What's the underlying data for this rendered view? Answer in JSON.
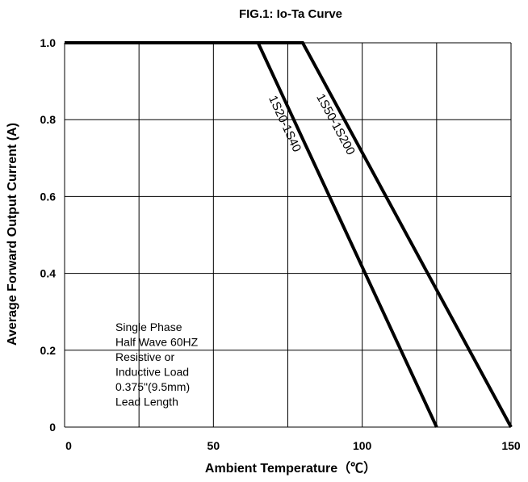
{
  "chart_data": {
    "type": "line",
    "title": "FIG.1: Io-Ta Curve",
    "xlabel": "Ambient Temperature（℃）",
    "ylabel": "Average Forward Output Current (A)",
    "xlim": [
      0,
      150
    ],
    "ylim": [
      0,
      1.0
    ],
    "x_ticks": [
      0,
      50,
      100,
      150
    ],
    "x_tick_labels": [
      "0",
      "50",
      "100",
      "150"
    ],
    "y_ticks": [
      0,
      0.2,
      0.4,
      0.6,
      0.8,
      1.0
    ],
    "y_tick_labels": [
      "0",
      "0.2",
      "0.4",
      "0.6",
      "0.8",
      "1.0"
    ],
    "x_grid": [
      0,
      25,
      50,
      75,
      100,
      125,
      150
    ],
    "y_grid": [
      0,
      0.2,
      0.4,
      0.6,
      0.8,
      1.0
    ],
    "grid": true,
    "series": [
      {
        "name": "1S20-1S40",
        "x": [
          0,
          65,
          125
        ],
        "y": [
          1.0,
          1.0,
          0
        ]
      },
      {
        "name": "1S50-1S200",
        "x": [
          0,
          80,
          150
        ],
        "y": [
          1.0,
          1.0,
          0
        ]
      }
    ],
    "annotation": [
      "Single Phase",
      "Half Wave 60HZ",
      "Resistive or",
      "Inductive Load",
      "0.375\"(9.5mm)",
      "Lead Length"
    ]
  }
}
